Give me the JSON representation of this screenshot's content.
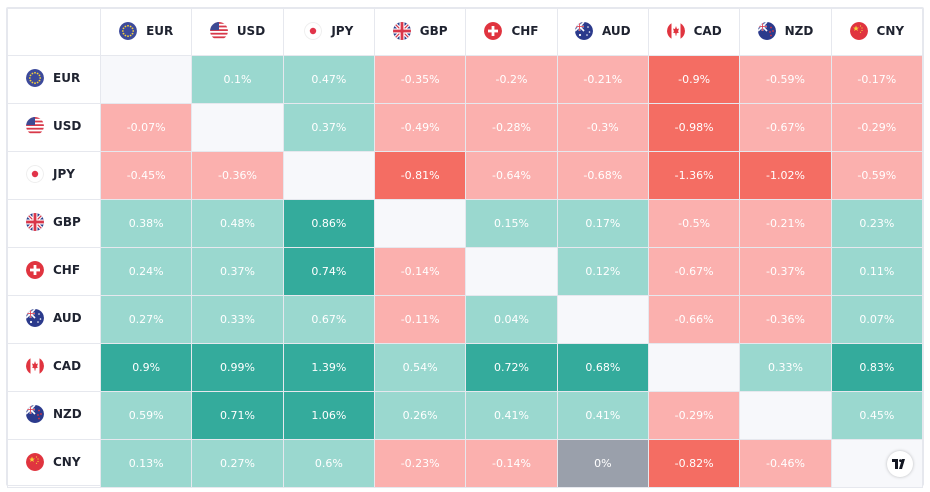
{
  "currencies": [
    "EUR",
    "USD",
    "JPY",
    "GBP",
    "CHF",
    "AUD",
    "CAD",
    "NZD",
    "CNY"
  ],
  "flags": {
    "EUR": "eu-flag-icon",
    "USD": "us-flag-icon",
    "JPY": "jp-flag-icon",
    "GBP": "gb-flag-icon",
    "CHF": "ch-flag-icon",
    "AUD": "au-flag-icon",
    "CAD": "ca-flag-icon",
    "NZD": "nz-flag-icon",
    "CNY": "cn-flag-icon"
  },
  "colors": {
    "positive_light": "#9ad8cf",
    "positive_strong": "#34ab9c",
    "negative_light": "#fbb0ae",
    "negative_strong": "#f46d63",
    "zero": "#9aa0ab",
    "empty": "#f7f8fb"
  },
  "chart_data": {
    "type": "heatmap",
    "rows": [
      "EUR",
      "USD",
      "JPY",
      "GBP",
      "CHF",
      "AUD",
      "CAD",
      "NZD",
      "CNY"
    ],
    "columns": [
      "EUR",
      "USD",
      "JPY",
      "GBP",
      "CHF",
      "AUD",
      "CAD",
      "NZD",
      "CNY"
    ],
    "cells": [
      [
        "",
        "0.1%",
        "0.47%",
        "-0.35%",
        "-0.2%",
        "-0.21%",
        "-0.9%",
        "-0.59%",
        "-0.17%"
      ],
      [
        "-0.07%",
        "",
        "0.37%",
        "-0.49%",
        "-0.28%",
        "-0.3%",
        "-0.98%",
        "-0.67%",
        "-0.29%"
      ],
      [
        "-0.45%",
        "-0.36%",
        "",
        "-0.81%",
        "-0.64%",
        "-0.68%",
        "-1.36%",
        "-1.02%",
        "-0.59%"
      ],
      [
        "0.38%",
        "0.48%",
        "0.86%",
        "",
        "0.15%",
        "0.17%",
        "-0.5%",
        "-0.21%",
        "0.23%"
      ],
      [
        "0.24%",
        "0.37%",
        "0.74%",
        "-0.14%",
        "",
        "0.12%",
        "-0.67%",
        "-0.37%",
        "0.11%"
      ],
      [
        "0.27%",
        "0.33%",
        "0.67%",
        "-0.11%",
        "0.04%",
        "",
        "-0.66%",
        "-0.36%",
        "0.07%"
      ],
      [
        "0.9%",
        "0.99%",
        "1.39%",
        "0.54%",
        "0.72%",
        "0.68%",
        "",
        "0.33%",
        "0.83%"
      ],
      [
        "0.59%",
        "0.71%",
        "1.06%",
        "0.26%",
        "0.41%",
        "0.41%",
        "-0.29%",
        "",
        "0.45%"
      ],
      [
        "0.13%",
        "0.27%",
        "0.6%",
        "-0.23%",
        "-0.14%",
        "0%",
        "-0.82%",
        "-0.46%",
        ""
      ]
    ]
  }
}
